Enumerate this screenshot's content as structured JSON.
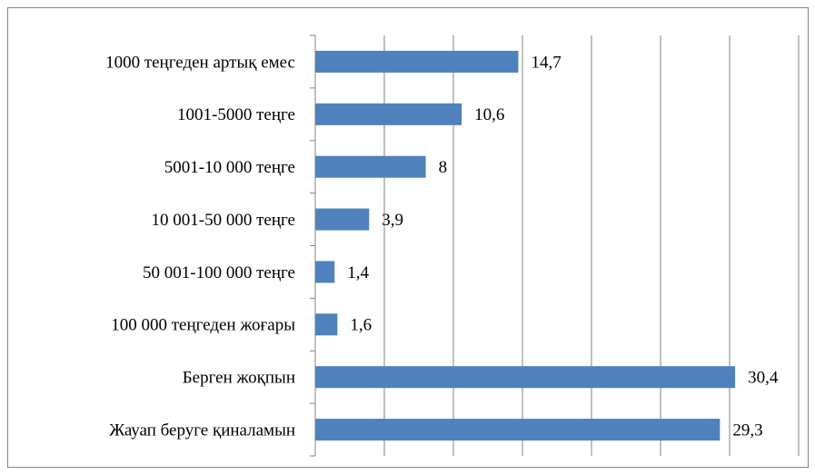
{
  "chart_data": {
    "type": "barh",
    "categories": [
      "1000 теңгеден артық емес",
      "1001-5000 теңге",
      "5001-10 000 теңге",
      "10 001-50 000 теңге",
      "50 001-100 000 теңге",
      "100 000 теңгеден жоғары",
      "Берген жоқпын",
      "Жауап беруге қиналамын"
    ],
    "values": [
      14.7,
      10.6,
      8,
      3.9,
      1.4,
      1.6,
      30.4,
      29.3
    ],
    "value_labels": [
      "14,7",
      "10,6",
      "8",
      "3,9",
      "1,4",
      "1,6",
      "30,4",
      "29,3"
    ],
    "color": "#4f81bd",
    "xlim": [
      0,
      35
    ],
    "xticks": [
      0,
      5,
      10,
      15,
      20,
      25,
      30,
      35
    ],
    "grid": true
  }
}
